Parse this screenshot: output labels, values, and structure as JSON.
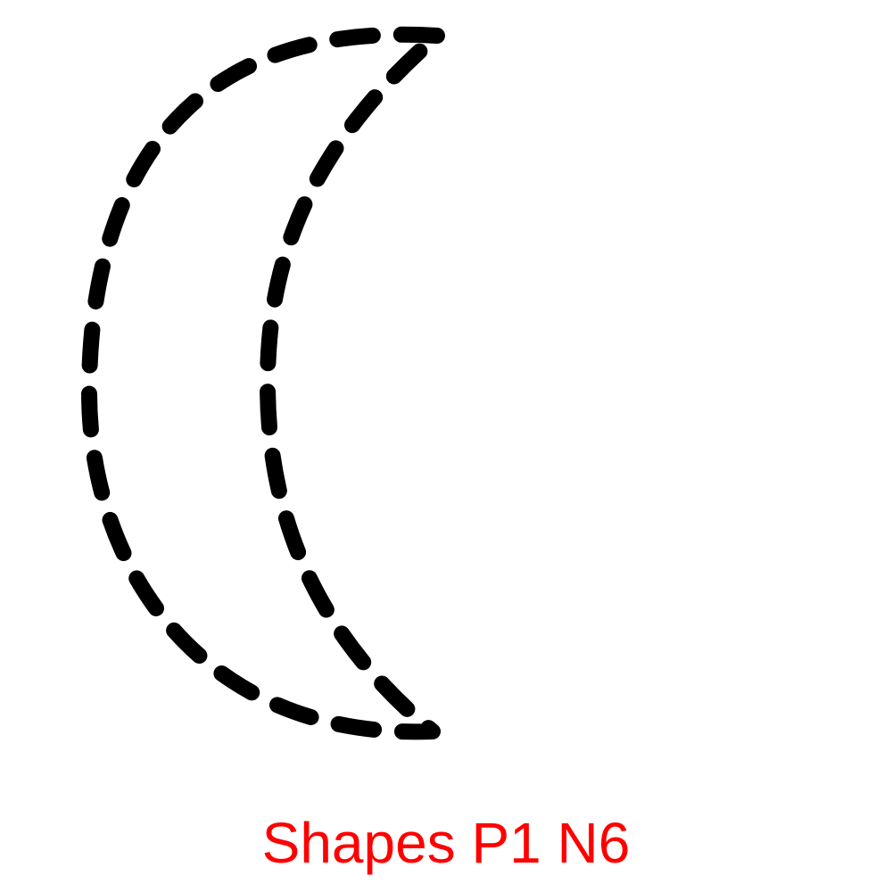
{
  "shape": {
    "name": "crescent-moon",
    "outline_style": "dashed",
    "stroke_color": "#000000",
    "fill": "none"
  },
  "caption": {
    "text": "Shapes P1 N6",
    "color": "#ff0000"
  }
}
